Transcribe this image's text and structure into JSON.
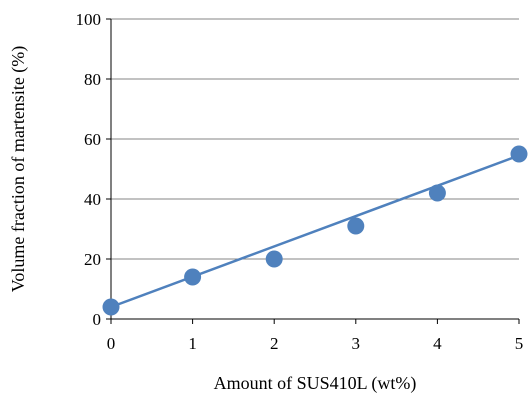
{
  "chart_data": {
    "type": "scatter",
    "title": "",
    "xlabel": "Amount of SUS410L (wt%)",
    "ylabel": "Volume fraction of martensite (%)",
    "xlim": [
      0,
      5
    ],
    "ylim": [
      0,
      100
    ],
    "x_ticks": [
      "0",
      "1",
      "2",
      "3",
      "4",
      "5"
    ],
    "y_ticks": [
      "0",
      "20",
      "40",
      "60",
      "80",
      "100"
    ],
    "grid": "horizontal",
    "series": [
      {
        "marker_color": "#4F81BD",
        "x": [
          0,
          1,
          2,
          3,
          4,
          5
        ],
        "y": [
          4,
          14,
          20,
          31,
          42,
          55
        ]
      }
    ],
    "trendline": {
      "type": "linear",
      "color": "#4F81BD",
      "x": [
        0,
        5
      ],
      "y": [
        4,
        54.5
      ]
    }
  }
}
